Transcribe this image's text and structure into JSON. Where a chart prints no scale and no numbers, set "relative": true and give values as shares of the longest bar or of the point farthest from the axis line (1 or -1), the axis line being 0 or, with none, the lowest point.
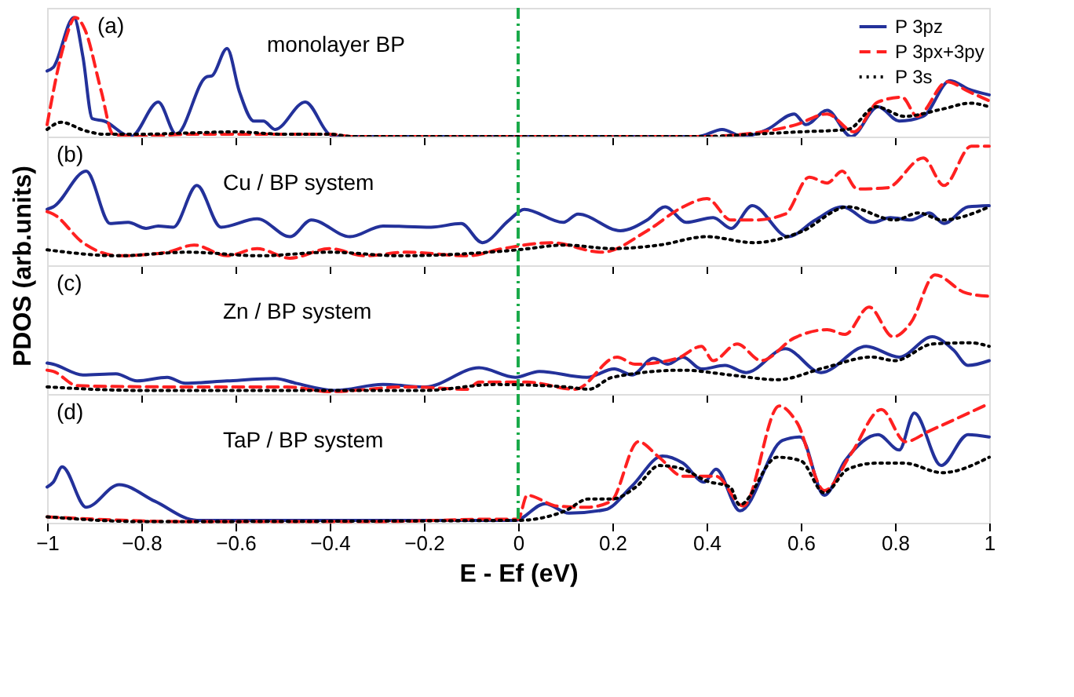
{
  "chart_data": [
    {
      "type": "line",
      "relative": true,
      "annotations": [
        "(a)",
        "monolayer BP"
      ],
      "xlim": [
        -1,
        1
      ],
      "xticks": [
        -1,
        -0.8,
        -0.6,
        -0.4,
        -0.2,
        0,
        0.2,
        0.4,
        0.6,
        0.8,
        1
      ],
      "tick_labels": false,
      "grid": false,
      "legend": "top right",
      "marker": "none",
      "ref_lines": [
        {
          "axis": "x",
          "value": 0,
          "color": "#1aaa4a",
          "line_style": "dashdot"
        }
      ],
      "series": [
        {
          "name": "P 3pz",
          "color": "#23319a",
          "line_style": "solid",
          "x": [
            -1,
            -0.987,
            -0.943,
            -0.924,
            -0.904,
            -0.879,
            -0.822,
            -0.764,
            -0.726,
            -0.662,
            -0.65,
            -0.618,
            -0.592,
            -0.561,
            -0.541,
            -0.516,
            -0.452,
            -0.401,
            -0.389,
            0.382,
            0.433,
            0.478,
            0.529,
            0.586,
            0.611,
            0.656,
            0.707,
            0.764,
            0.809,
            0.86,
            0.917,
            0.955,
            1
          ],
          "values": [
            0.55,
            0.58,
            1.0,
            0.67,
            0.15,
            0.13,
            0,
            0.29,
            0.02,
            0.5,
            0.51,
            0.74,
            0.38,
            0.13,
            0.13,
            0.06,
            0.29,
            0.02,
            0,
            0,
            0.06,
            0,
            0.06,
            0.19,
            0.1,
            0.22,
            0,
            0.25,
            0.13,
            0.17,
            0.47,
            0.4,
            0.35
          ]
        },
        {
          "name": "P 3px+3py",
          "color": "#ff2020",
          "line_style": "dashed",
          "x": [
            -1,
            -0.962,
            -0.94,
            -0.92,
            -0.885,
            -0.86,
            -0.8,
            -0.7,
            -0.6,
            -0.4,
            -0.35,
            0.38,
            0.5,
            0.59,
            0.656,
            0.713,
            0.764,
            0.815,
            0.847,
            0.911,
            0.955,
            1
          ],
          "values": [
            0.1,
            0.8,
            1.0,
            0.9,
            0.38,
            0.02,
            0,
            0.02,
            0.02,
            0.02,
            0,
            0,
            0.03,
            0.1,
            0.19,
            0.04,
            0.29,
            0.33,
            0.17,
            0.46,
            0.38,
            0.3
          ]
        },
        {
          "name": "P 3s",
          "color": "#000000",
          "line_style": "dotted",
          "x": [
            -1,
            -0.97,
            -0.92,
            -0.88,
            -0.8,
            -0.7,
            -0.6,
            -0.5,
            -0.4,
            -0.35,
            0.4,
            0.5,
            0.6,
            0.7,
            0.76,
            0.82,
            0.9,
            0.96,
            1
          ],
          "values": [
            0.06,
            0.12,
            0.05,
            0.02,
            0.02,
            0.03,
            0.04,
            0.02,
            0.02,
            0,
            0,
            0.02,
            0.04,
            0.06,
            0.25,
            0.17,
            0.23,
            0.28,
            0.25
          ]
        }
      ]
    },
    {
      "type": "line",
      "relative": true,
      "annotations": [
        "(b)",
        "Cu / BP system"
      ],
      "ylabel": "PDOS (arb.units)",
      "xlim": [
        -1,
        1
      ],
      "xticks": [
        -1,
        -0.8,
        -0.6,
        -0.4,
        -0.2,
        0,
        0.2,
        0.4,
        0.6,
        0.8,
        1
      ],
      "tick_labels": false,
      "grid": false,
      "marker": "none",
      "ref_lines": [
        {
          "axis": "x",
          "value": 0,
          "color": "#1aaa4a",
          "line_style": "dashdot"
        }
      ],
      "series": [
        {
          "color": "#23319a",
          "line_style": "solid",
          "x": [
            -1,
            -0.987,
            -0.917,
            -0.866,
            -0.828,
            -0.79,
            -0.764,
            -0.732,
            -0.682,
            -0.631,
            -0.554,
            -0.484,
            -0.439,
            -0.357,
            -0.287,
            -0.185,
            -0.121,
            -0.076,
            -0.019,
            0.013,
            0.096,
            0.127,
            0.217,
            0.274,
            0.312,
            0.357,
            0.414,
            0.452,
            0.497,
            0.573,
            0.631,
            0.688,
            0.752,
            0.79,
            0.834,
            0.873,
            0.904,
            0.955,
            1
          ],
          "values": [
            0.47,
            0.49,
            0.79,
            0.35,
            0.36,
            0.31,
            0.33,
            0.32,
            0.67,
            0.32,
            0.39,
            0.24,
            0.38,
            0.24,
            0.33,
            0.32,
            0.35,
            0.19,
            0.38,
            0.47,
            0.36,
            0.43,
            0.29,
            0.38,
            0.49,
            0.36,
            0.4,
            0.31,
            0.5,
            0.24,
            0.38,
            0.49,
            0.36,
            0.4,
            0.38,
            0.44,
            0.35,
            0.49,
            0.5
          ]
        },
        {
          "color": "#ff2020",
          "line_style": "dashed",
          "x": [
            -1,
            -0.987,
            -0.924,
            -0.847,
            -0.745,
            -0.688,
            -0.618,
            -0.554,
            -0.484,
            -0.401,
            -0.325,
            -0.236,
            -0.108,
            -0.032,
            0.07,
            0.178,
            0.274,
            0.35,
            0.401,
            0.452,
            0.503,
            0.567,
            0.618,
            0.656,
            0.688,
            0.72,
            0.783,
            0.86,
            0.904,
            0.962,
            1
          ],
          "values": [
            0.45,
            0.43,
            0.19,
            0.08,
            0.11,
            0.17,
            0.08,
            0.14,
            0.06,
            0.14,
            0.08,
            0.11,
            0.08,
            0.14,
            0.19,
            0.11,
            0.29,
            0.49,
            0.56,
            0.38,
            0.38,
            0.43,
            0.74,
            0.69,
            0.79,
            0.64,
            0.65,
            0.9,
            0.67,
            1.0,
            1.0
          ]
        },
        {
          "color": "#000000",
          "line_style": "dotted",
          "x": [
            -1,
            -0.85,
            -0.7,
            -0.55,
            -0.4,
            -0.25,
            -0.1,
            0,
            0.1,
            0.2,
            0.3,
            0.4,
            0.5,
            0.6,
            0.7,
            0.8,
            0.85,
            0.9,
            1
          ],
          "values": [
            0.13,
            0.08,
            0.11,
            0.08,
            0.11,
            0.08,
            0.1,
            0.13,
            0.17,
            0.14,
            0.17,
            0.24,
            0.19,
            0.28,
            0.49,
            0.38,
            0.44,
            0.38,
            0.49
          ]
        }
      ]
    },
    {
      "type": "line",
      "relative": true,
      "annotations": [
        "(c)",
        "Zn / BP system"
      ],
      "xlim": [
        -1,
        1
      ],
      "xticks": [
        -1,
        -0.8,
        -0.6,
        -0.4,
        -0.2,
        0,
        0.2,
        0.4,
        0.6,
        0.8,
        1
      ],
      "tick_labels": false,
      "grid": false,
      "marker": "none",
      "ref_lines": [
        {
          "axis": "x",
          "value": 0,
          "color": "#1aaa4a",
          "line_style": "dashdot"
        }
      ],
      "series": [
        {
          "color": "#23319a",
          "line_style": "solid",
          "x": [
            -1,
            -0.987,
            -0.924,
            -0.854,
            -0.809,
            -0.745,
            -0.707,
            -0.618,
            -0.516,
            -0.471,
            -0.389,
            -0.287,
            -0.197,
            -0.083,
            -0.006,
            0.045,
            0.146,
            0.204,
            0.242,
            0.287,
            0.318,
            0.35,
            0.389,
            0.439,
            0.484,
            0.567,
            0.643,
            0.739,
            0.809,
            0.879,
            0.924,
            0.955,
            1
          ],
          "values": [
            0.26,
            0.25,
            0.16,
            0.17,
            0.11,
            0.14,
            0.09,
            0.11,
            0.13,
            0.09,
            0.03,
            0.08,
            0.06,
            0.22,
            0.14,
            0.19,
            0.14,
            0.21,
            0.16,
            0.3,
            0.25,
            0.31,
            0.21,
            0.24,
            0.18,
            0.38,
            0.18,
            0.4,
            0.31,
            0.48,
            0.37,
            0.24,
            0.28
          ]
        },
        {
          "color": "#ff2020",
          "line_style": "dashed",
          "x": [
            -1,
            -0.987,
            -0.936,
            -0.745,
            -0.49,
            -0.401,
            -0.236,
            -0.108,
            -0.083,
            0.019,
            0.121,
            0.21,
            0.248,
            0.338,
            0.389,
            0.414,
            0.465,
            0.516,
            0.586,
            0.656,
            0.694,
            0.745,
            0.796,
            0.834,
            0.885,
            0.949,
            1
          ],
          "values": [
            0.2,
            0.19,
            0.07,
            0.06,
            0.06,
            0.02,
            0.06,
            0.04,
            0.1,
            0.1,
            0.04,
            0.31,
            0.25,
            0.3,
            0.4,
            0.28,
            0.42,
            0.28,
            0.47,
            0.54,
            0.5,
            0.73,
            0.48,
            0.6,
            1.0,
            0.85,
            0.82
          ]
        },
        {
          "color": "#000000",
          "line_style": "dotted",
          "x": [
            -1,
            -0.8,
            -0.5,
            -0.2,
            -0.05,
            0.1,
            0.15,
            0.2,
            0.35,
            0.45,
            0.55,
            0.65,
            0.75,
            0.8,
            0.88,
            0.96,
            1
          ],
          "values": [
            0.06,
            0.03,
            0.03,
            0.03,
            0.08,
            0.06,
            0.04,
            0.14,
            0.2,
            0.16,
            0.12,
            0.22,
            0.31,
            0.28,
            0.42,
            0.43,
            0.4
          ]
        }
      ]
    },
    {
      "type": "line",
      "relative": true,
      "annotations": [
        "(d)",
        "TaP / BP system"
      ],
      "xlabel": "E - Ef (eV)",
      "xlim": [
        -1,
        1
      ],
      "xticks": [
        -1,
        -0.8,
        -0.6,
        -0.4,
        -0.2,
        0,
        0.2,
        0.4,
        0.6,
        0.8,
        1
      ],
      "tick_labels": "x",
      "grid": false,
      "marker": "none",
      "ref_lines": [
        {
          "axis": "x",
          "value": 0,
          "color": "#1aaa4a",
          "line_style": "dashdot"
        }
      ],
      "series": [
        {
          "color": "#23319a",
          "line_style": "solid",
          "x": [
            -1,
            -0.987,
            -0.968,
            -0.917,
            -0.847,
            -0.771,
            -0.682,
            -0.49,
            -0.006,
            0.057,
            0.108,
            0.185,
            0.242,
            0.306,
            0.35,
            0.395,
            0.42,
            0.471,
            0.561,
            0.599,
            0.65,
            0.694,
            0.764,
            0.809,
            0.841,
            0.898,
            0.955,
            1
          ],
          "values": [
            0.3,
            0.34,
            0.47,
            0.13,
            0.32,
            0.18,
            0.02,
            0.02,
            0.02,
            0.16,
            0.08,
            0.11,
            0.31,
            0.56,
            0.5,
            0.34,
            0.45,
            0.1,
            0.69,
            0.72,
            0.23,
            0.52,
            0.74,
            0.61,
            0.92,
            0.48,
            0.74,
            0.72
          ]
        },
        {
          "color": "#ff2020",
          "line_style": "dashed",
          "x": [
            -1,
            -0.9,
            -0.7,
            -0.3,
            -0.05,
            0,
            0.019,
            0.083,
            0.146,
            0.197,
            0.255,
            0.299,
            0.35,
            0.42,
            0.478,
            0.554,
            0.592,
            0.65,
            0.707,
            0.771,
            0.822,
            0.873,
            1
          ],
          "values": [
            0.05,
            0.03,
            0.01,
            0.01,
            0.03,
            0.03,
            0.23,
            0.14,
            0.13,
            0.18,
            0.68,
            0.55,
            0.39,
            0.39,
            0.14,
            0.98,
            0.84,
            0.27,
            0.58,
            0.95,
            0.68,
            0.77,
            1.0
          ]
        },
        {
          "color": "#000000",
          "line_style": "dotted",
          "x": [
            -1,
            -0.8,
            0,
            0.1,
            0.15,
            0.2,
            0.25,
            0.3,
            0.35,
            0.4,
            0.45,
            0.47,
            0.55,
            0.6,
            0.65,
            0.7,
            0.76,
            0.82,
            0.9,
            1
          ],
          "values": [
            0.05,
            0.01,
            0.02,
            0.1,
            0.2,
            0.2,
            0.3,
            0.48,
            0.45,
            0.35,
            0.3,
            0.15,
            0.55,
            0.52,
            0.25,
            0.45,
            0.5,
            0.5,
            0.42,
            0.55
          ]
        }
      ]
    }
  ]
}
